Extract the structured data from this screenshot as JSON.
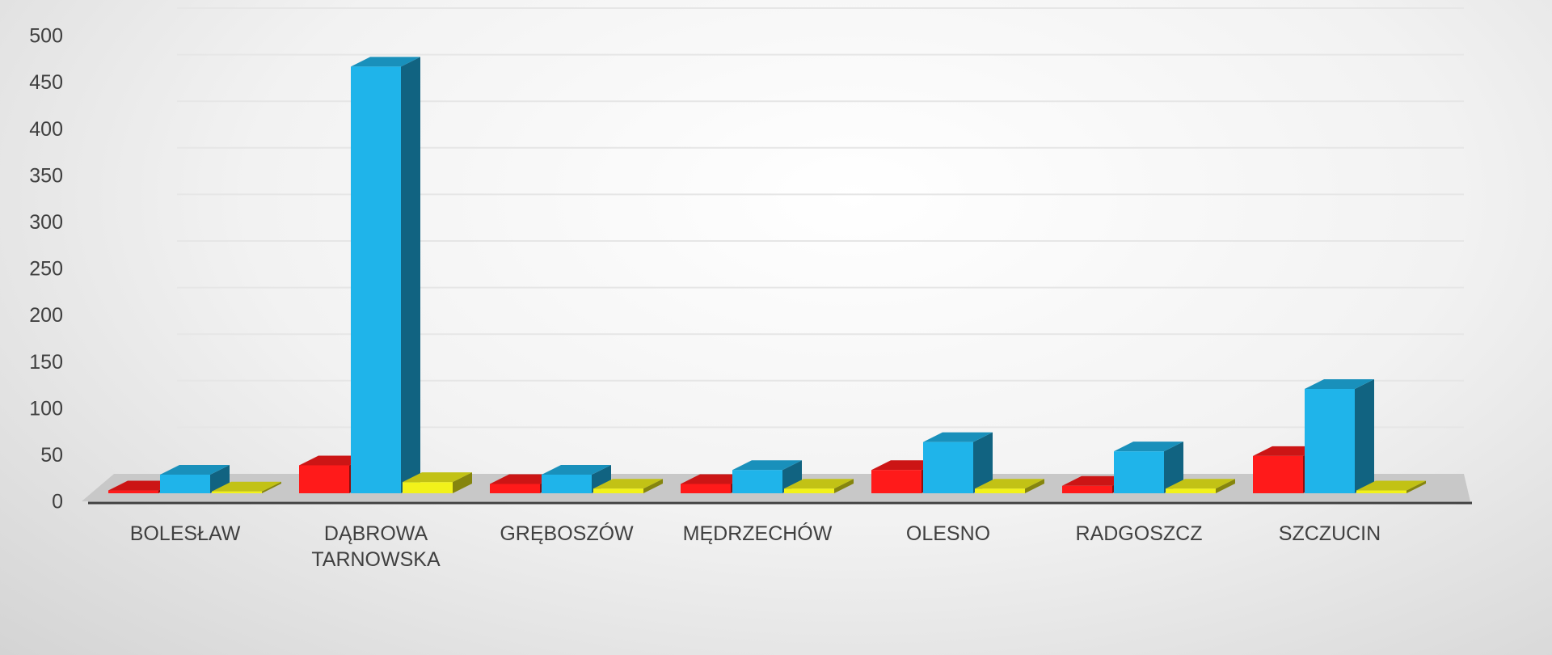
{
  "chart_data": {
    "type": "bar3d",
    "categories": [
      "BOLESŁAW",
      "DĄBROWA TARNOWSKA",
      "GRĘBOSZÓW",
      "MĘDRZECHÓW",
      "OLESNO",
      "RADGOSZCZ",
      "SZCZUCIN"
    ],
    "series": [
      {
        "color": "#ff1a1a",
        "values": [
          3,
          30,
          10,
          10,
          25,
          8,
          40
        ]
      },
      {
        "color": "#1fb4ea",
        "values": [
          20,
          458,
          20,
          25,
          55,
          45,
          112
        ]
      },
      {
        "color": "#f2f21a",
        "values": [
          2,
          12,
          5,
          5,
          5,
          5,
          3
        ]
      }
    ],
    "ylim": [
      0,
      500
    ],
    "yticks": [
      0,
      50,
      100,
      150,
      200,
      250,
      300,
      350,
      400,
      450,
      500
    ],
    "grid": true
  }
}
